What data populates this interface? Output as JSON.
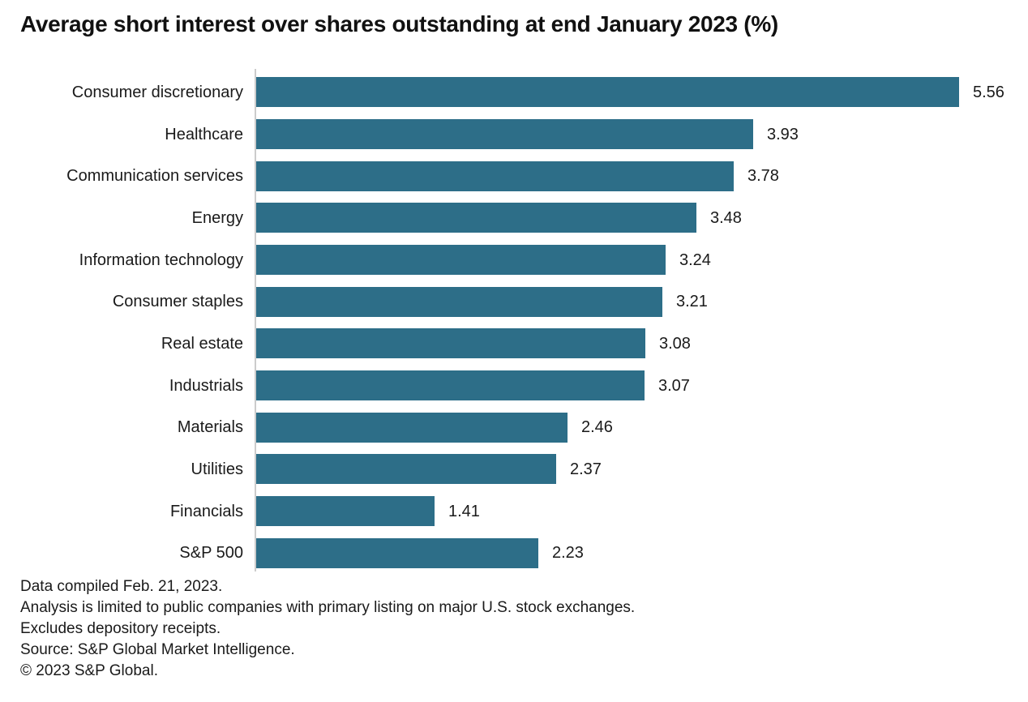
{
  "chart_data": {
    "type": "bar",
    "orientation": "horizontal",
    "title": "Average short interest over shares outstanding at end January 2023 (%)",
    "categories": [
      "Consumer discretionary",
      "Healthcare",
      "Communication services",
      "Energy",
      "Information technology",
      "Consumer staples",
      "Real estate",
      "Industrials",
      "Materials",
      "Utilities",
      "Financials",
      "S&P 500"
    ],
    "values": [
      5.56,
      3.93,
      3.78,
      3.48,
      3.24,
      3.21,
      3.08,
      3.07,
      2.46,
      2.37,
      1.41,
      2.23
    ],
    "value_labels": [
      "5.56",
      "3.93",
      "3.78",
      "3.48",
      "3.24",
      "3.21",
      "3.08",
      "3.07",
      "2.46",
      "2.37",
      "1.41",
      "2.23"
    ],
    "xlim": [
      0,
      5.56
    ],
    "bar_color": "#2D6E88",
    "axis_line_color": "#CCCCCC",
    "grid": false,
    "legend": false,
    "value_label_position": "outside-end"
  },
  "footnotes": {
    "lines": [
      "Data compiled Feb. 21, 2023.",
      "Analysis is limited to public companies with primary listing on major U.S. stock exchanges.",
      "Excludes depository receipts.",
      "Source: S&P Global Market Intelligence.",
      "© 2023 S&P Global."
    ]
  }
}
